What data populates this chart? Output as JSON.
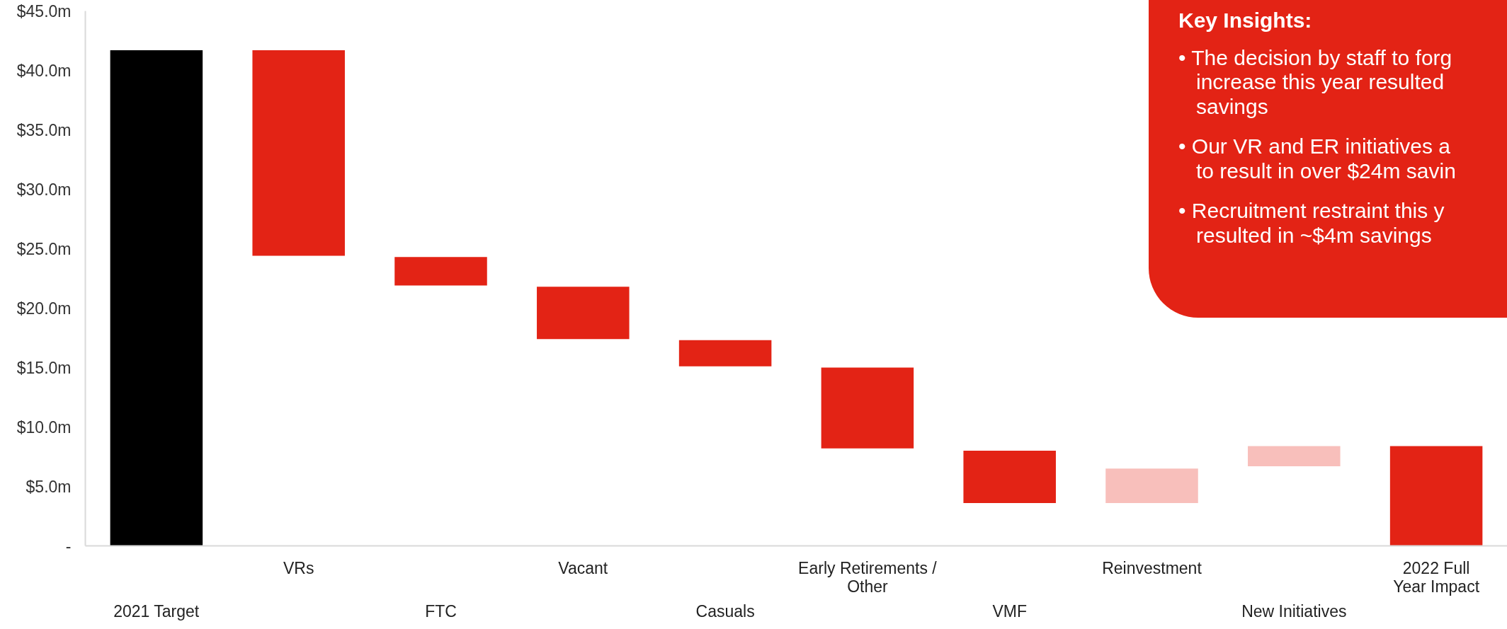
{
  "chart_data": {
    "type": "bar",
    "categories": [
      "2021 Target",
      "VRs",
      "FTC",
      "Vacant",
      "Casuals",
      "Early Retirements /\nOther",
      "VMF",
      "Reinvestment",
      "New Initiatives",
      "2022 Full\nYear Impact"
    ],
    "values": [
      41.7,
      17.3,
      2.4,
      4.4,
      2.2,
      6.8,
      4.4,
      2.9,
      1.7,
      8.4
    ],
    "base": [
      0,
      24.4,
      21.9,
      17.4,
      15.1,
      8.2,
      3.6,
      3.6,
      6.7,
      0
    ],
    "colors": [
      "#000000",
      "#e32315",
      "#e32315",
      "#e32315",
      "#e32315",
      "#e32315",
      "#e32315",
      "#f8bfbb",
      "#f8bfbb",
      "#e32315"
    ],
    "ylim": [
      0,
      45
    ],
    "yticks": [
      {
        "value": 0,
        "label": "-"
      },
      {
        "value": 5,
        "label": "$5.0m"
      },
      {
        "value": 10,
        "label": "$10.0m"
      },
      {
        "value": 15,
        "label": "$15.0m"
      },
      {
        "value": 20,
        "label": "$20.0m"
      },
      {
        "value": 25,
        "label": "$25.0m"
      },
      {
        "value": 30,
        "label": "$30.0m"
      },
      {
        "value": 35,
        "label": "$35.0m"
      },
      {
        "value": 40,
        "label": "$40.0m"
      },
      {
        "value": 45,
        "label": "$45.0m"
      }
    ],
    "grid": false,
    "annotations": [
      "Key Insights:",
      "• The decision by staff to forg\n   increase this year resulted\n   savings",
      "• Our VR and ER initiatives a\n   to result in over $24m savin",
      "• Recruitment restraint this y\n   resulted in ~$4m savings"
    ]
  }
}
